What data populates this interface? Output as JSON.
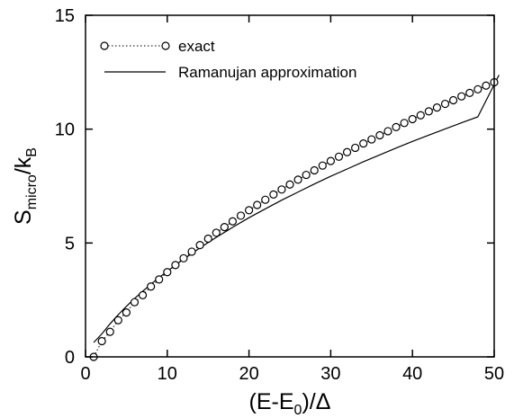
{
  "chart_data": {
    "type": "line",
    "title": "",
    "xlabel": {
      "main": "(E-E",
      "sub": "0",
      "tail": ")/Δ"
    },
    "ylabel": {
      "main": "S",
      "sub1": "micro",
      "mid": "/k",
      "sub2": "B"
    },
    "xlim": [
      0,
      50
    ],
    "ylim": [
      0,
      15
    ],
    "x_ticks": [
      0,
      10,
      20,
      30,
      40,
      50
    ],
    "y_ticks": [
      0,
      5,
      10,
      15
    ],
    "grid": false,
    "legend": {
      "placement": "top-left",
      "entries": [
        {
          "label": "exact",
          "style": "dotted line with open circles"
        },
        {
          "label": "Ramanujan approximation",
          "style": "solid line"
        }
      ]
    },
    "series": [
      {
        "name": "exact",
        "marker": "circle",
        "line": "dotted",
        "x": [
          1,
          2,
          3,
          4,
          5,
          6,
          7,
          8,
          9,
          10,
          11,
          12,
          13,
          14,
          15,
          16,
          17,
          18,
          19,
          20,
          21,
          22,
          23,
          24,
          25,
          26,
          27,
          28,
          29,
          30,
          31,
          32,
          33,
          34,
          35,
          36,
          37,
          38,
          39,
          40,
          41,
          42,
          43,
          44,
          45,
          46,
          47,
          48,
          49,
          50
        ],
        "y": [
          0.0,
          0.69,
          1.1,
          1.61,
          1.95,
          2.4,
          2.71,
          3.09,
          3.4,
          3.72,
          4.03,
          4.33,
          4.62,
          4.91,
          5.19,
          5.45,
          5.7,
          5.95,
          6.2,
          6.44,
          6.67,
          6.9,
          7.13,
          7.35,
          7.57,
          7.78,
          7.99,
          8.19,
          8.4,
          8.6,
          8.79,
          8.99,
          9.18,
          9.37,
          9.55,
          9.73,
          9.91,
          10.09,
          10.27,
          10.44,
          10.61,
          10.78,
          10.95,
          11.11,
          11.27,
          11.44,
          11.59,
          11.75,
          11.91,
          12.06
        ]
      },
      {
        "name": "Ramanujan approximation",
        "line": "solid",
        "x": [
          1,
          2,
          3,
          4,
          5,
          6,
          7,
          8,
          9,
          10,
          12,
          14,
          16,
          18,
          20,
          22,
          24,
          26,
          28,
          30,
          32,
          34,
          36,
          38,
          40,
          42,
          44,
          46,
          48,
          50.6
        ],
        "y": [
          0.63,
          1.01,
          1.45,
          1.85,
          2.22,
          2.56,
          2.88,
          3.19,
          3.48,
          3.76,
          4.29,
          4.79,
          5.25,
          5.69,
          6.11,
          6.5,
          6.88,
          7.24,
          7.59,
          7.93,
          8.25,
          8.57,
          8.87,
          9.17,
          9.46,
          9.74,
          10.01,
          10.28,
          10.54,
          12.38
        ]
      }
    ]
  }
}
